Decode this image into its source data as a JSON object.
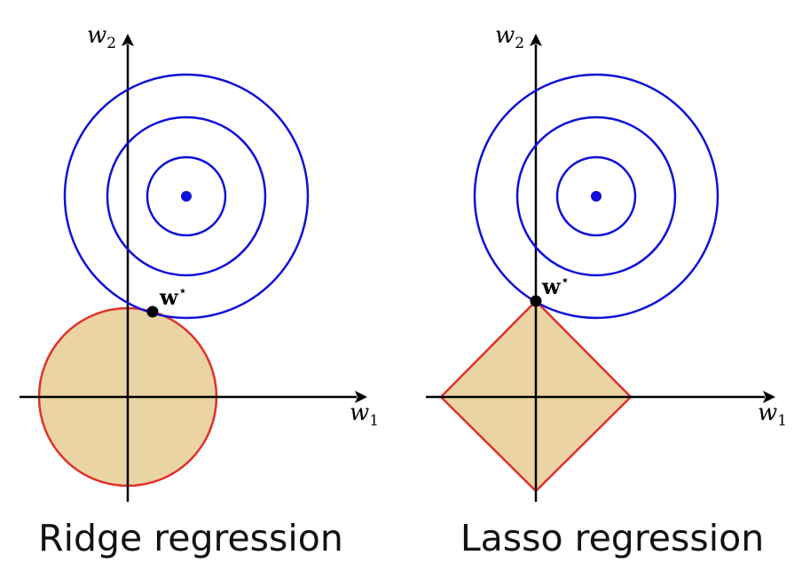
{
  "colors": {
    "contour": "#1010d8",
    "minimum_point": "#1010d8",
    "constraint_fill": "#ebd4a4",
    "constraint_edge": "#e0302a",
    "axis": "#000000",
    "solution_point": "#000000"
  },
  "panels": [
    {
      "id": "ridge",
      "constraint": "circle",
      "caption": "Ridge regression",
      "x_axis_label": "w",
      "x_axis_sub": "1",
      "y_axis_label": "w",
      "y_axis_sub": "2",
      "solution_label": "w",
      "solution_sup": "⋆"
    },
    {
      "id": "lasso",
      "constraint": "diamond",
      "caption": "Lasso regression",
      "x_axis_label": "w",
      "x_axis_sub": "1",
      "y_axis_label": "w",
      "y_axis_sub": "2",
      "solution_label": "w",
      "solution_sup": "⋆"
    }
  ]
}
